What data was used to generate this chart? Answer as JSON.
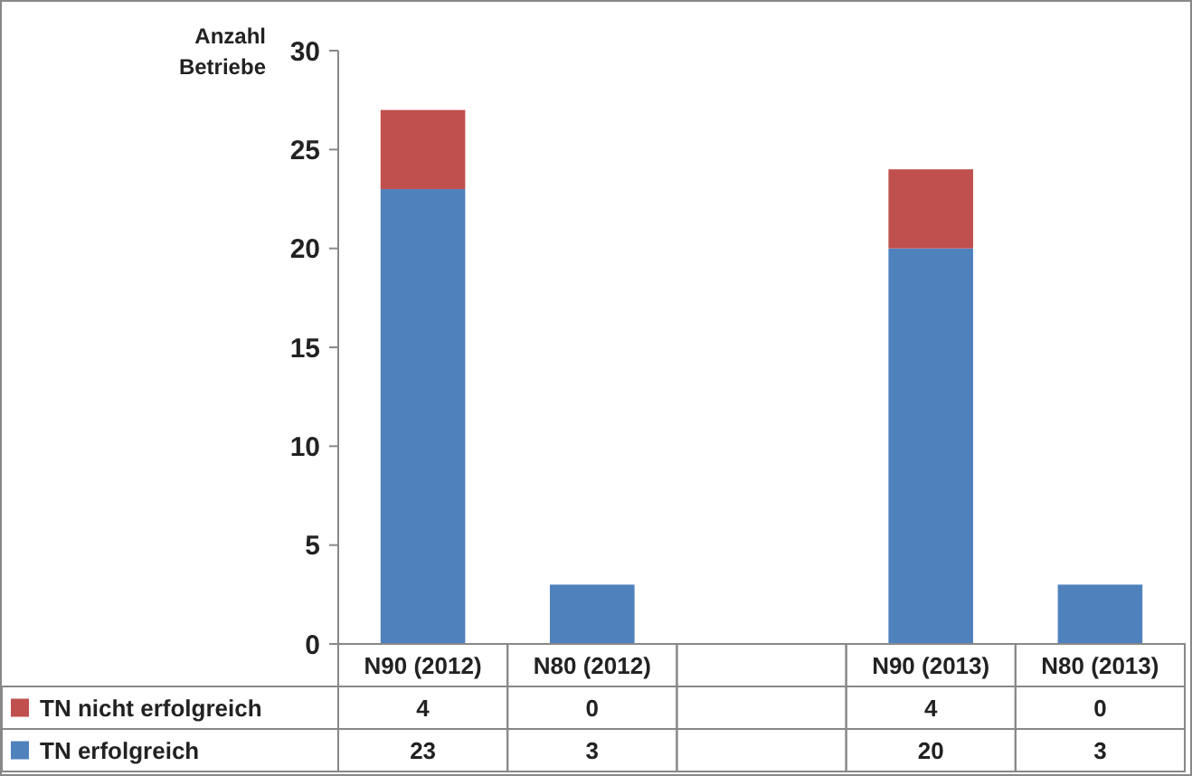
{
  "chart_data": {
    "type": "bar",
    "stacked": true,
    "ylabel": "Anzahl Betriebe",
    "categories": [
      "N90 (2012)",
      "N80 (2012)",
      null,
      "N90 (2013)",
      "N80 (2013)"
    ],
    "series": [
      {
        "name": "TN erfolgreich",
        "color": "#4f81bd",
        "values": [
          23,
          3,
          null,
          20,
          3
        ]
      },
      {
        "name": "TN nicht erfolgreich",
        "color": "#c0504d",
        "values": [
          4,
          0,
          null,
          4,
          0
        ]
      }
    ],
    "ylim": [
      0,
      30
    ],
    "yticks": [
      0,
      5,
      10,
      15,
      20,
      25,
      30
    ],
    "data_labels": true,
    "legend": "bottom",
    "grid": false
  }
}
